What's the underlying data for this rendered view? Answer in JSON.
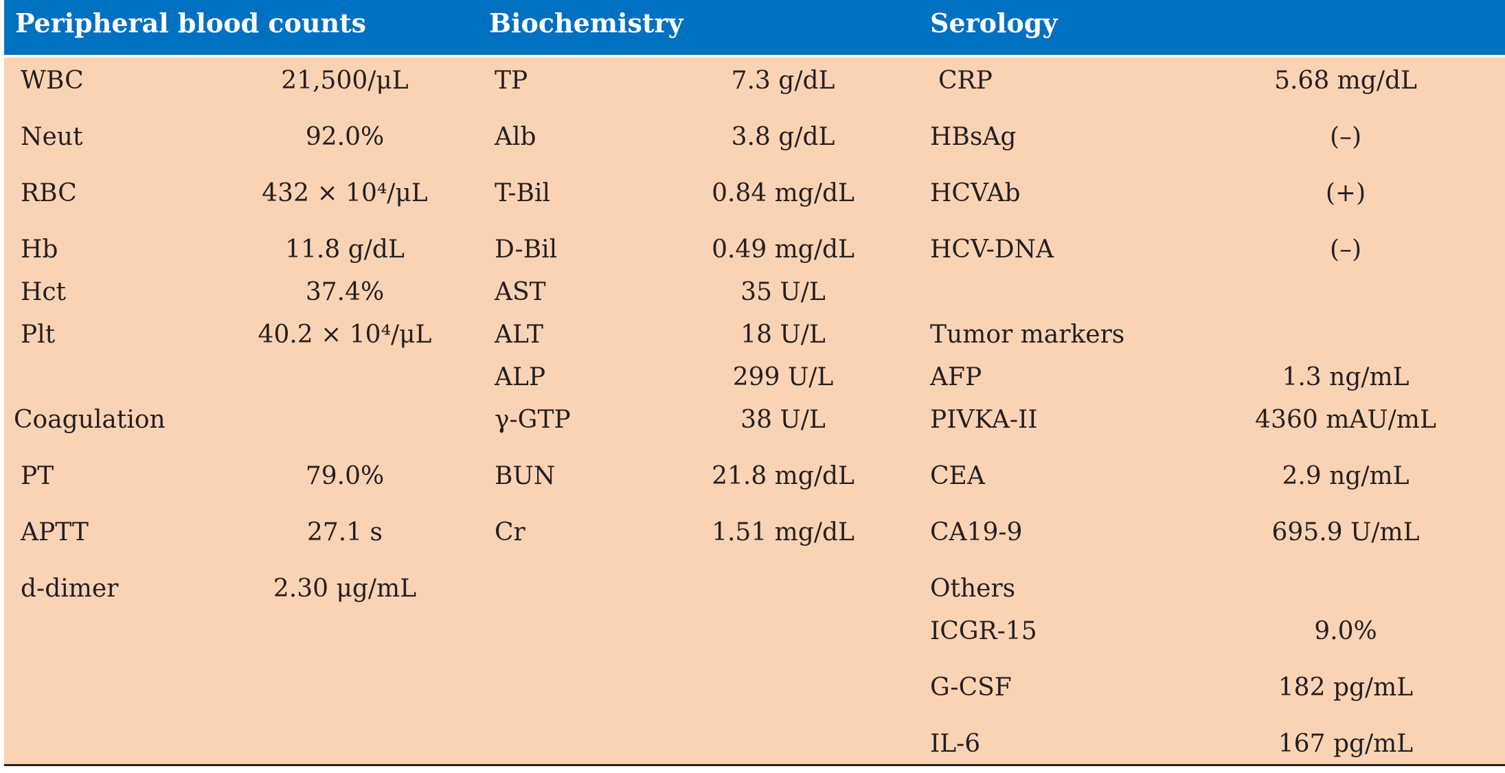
{
  "colors": {
    "header_bg": "#0070c0",
    "header_text": "#ffffff",
    "body_bg": "#fad3b4",
    "text": "#231f20"
  },
  "headers": {
    "peripheral": "Peripheral blood counts",
    "biochemistry": "Biochemistry",
    "serology": "Serology"
  },
  "col1": {
    "rows": [
      {
        "label": "WBC",
        "value": "21,500/μL"
      },
      {
        "label": "Neut",
        "value": "92.0%"
      },
      {
        "label": "RBC",
        "value": "432 × 10⁴/μL"
      },
      {
        "label": "Hb",
        "value": "11.8 g/dL"
      },
      {
        "label": "Hct",
        "value": "37.4%"
      },
      {
        "label": "Plt",
        "value": "40.2 × 10⁴/μL"
      }
    ],
    "coag_heading": "Coagulation",
    "coag_rows": [
      {
        "label": "PT",
        "value": "79.0%"
      },
      {
        "label": "APTT",
        "value": "27.1 s"
      },
      {
        "label": "d-dimer",
        "value": "2.30 μg/mL"
      }
    ]
  },
  "col2": {
    "rows": [
      {
        "label": "TP",
        "value": "7.3 g/dL"
      },
      {
        "label": "Alb",
        "value": "3.8 g/dL"
      },
      {
        "label": "T-Bil",
        "value": "0.84 mg/dL"
      },
      {
        "label": "D-Bil",
        "value": "0.49 mg/dL"
      },
      {
        "label": "AST",
        "value": "35 U/L"
      },
      {
        "label": "ALT",
        "value": "18 U/L"
      },
      {
        "label": "ALP",
        "value": "299 U/L"
      },
      {
        "label": "γ-GTP",
        "value": "38 U/L"
      },
      {
        "label": "BUN",
        "value": "21.8 mg/dL"
      },
      {
        "label": "Cr",
        "value": "1.51 mg/dL"
      }
    ]
  },
  "col3": {
    "rows": [
      {
        "label": "CRP",
        "value": "5.68 mg/dL"
      },
      {
        "label": "HBsAg",
        "value": "(–)"
      },
      {
        "label": "HCVAb",
        "value": "(+)"
      },
      {
        "label": "HCV-DNA",
        "value": "(–)"
      }
    ],
    "tumor_heading": "Tumor markers",
    "tumor_rows": [
      {
        "label": "AFP",
        "value": "1.3 ng/mL"
      },
      {
        "label": "PIVKA-II",
        "value": "4360 mAU/mL"
      },
      {
        "label": "CEA",
        "value": "2.9 ng/mL"
      },
      {
        "label": "CA19-9",
        "value": "695.9 U/mL"
      }
    ],
    "others_heading": "Others",
    "others_rows": [
      {
        "label": "ICGR-15",
        "value": "9.0%"
      },
      {
        "label": "G-CSF",
        "value": "182 pg/mL"
      },
      {
        "label": "IL-6",
        "value": "167 pg/mL"
      }
    ]
  }
}
